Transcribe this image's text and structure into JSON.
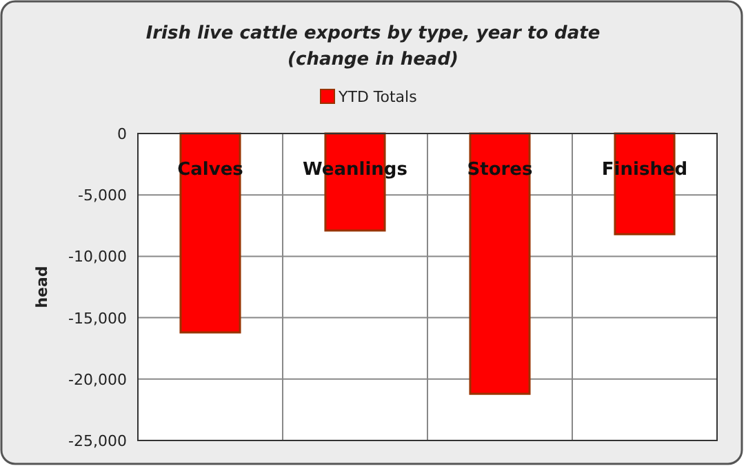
{
  "chart_data": {
    "type": "bar",
    "title": "Irish live cattle exports by type, year to date\n(change in head)",
    "ylabel": "head",
    "categories": [
      "Calves",
      "Weanlings",
      "Stores",
      "Finished"
    ],
    "series": [
      {
        "name": "YTD Totals",
        "color": "#ff0000",
        "values": [
          -16200,
          -7900,
          -21200,
          -8200
        ]
      }
    ],
    "ylim": [
      -25000,
      0
    ],
    "yticks": [
      {
        "value": -25000,
        "label": "-25,000"
      },
      {
        "value": -20000,
        "label": "-20,000"
      },
      {
        "value": -15000,
        "label": "-15,000"
      },
      {
        "value": -10000,
        "label": "-10,000"
      },
      {
        "value": -5000,
        "label": "-5,000"
      },
      0
    ],
    "grid": true,
    "legend": "top"
  }
}
